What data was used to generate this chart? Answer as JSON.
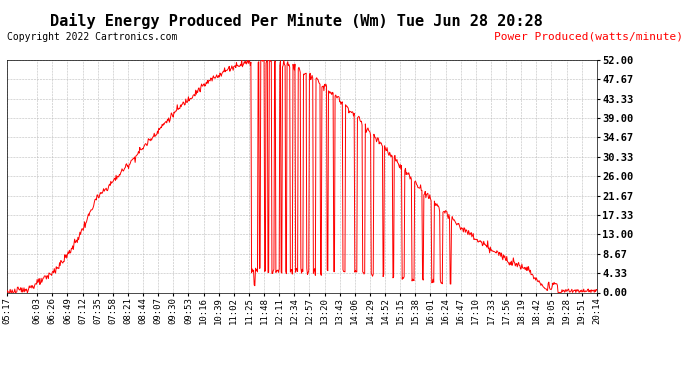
{
  "title": "Daily Energy Produced Per Minute (Wm) Tue Jun 28 20:28",
  "copyright": "Copyright 2022 Cartronics.com",
  "legend_label": "Power Produced(watts/minute)",
  "line_color": "#FF0000",
  "background_color": "#FFFFFF",
  "grid_color": "#BBBBBB",
  "ylim": [
    0,
    52.0
  ],
  "yticks": [
    0.0,
    4.33,
    8.67,
    13.0,
    17.33,
    21.67,
    26.0,
    30.33,
    34.67,
    39.0,
    43.33,
    47.67,
    52.0
  ],
  "xtick_labels": [
    "05:17",
    "06:03",
    "06:26",
    "06:49",
    "07:12",
    "07:35",
    "07:58",
    "08:21",
    "08:44",
    "09:07",
    "09:30",
    "09:53",
    "10:16",
    "10:39",
    "11:02",
    "11:25",
    "11:48",
    "12:11",
    "12:34",
    "12:57",
    "13:20",
    "13:43",
    "14:06",
    "14:29",
    "14:52",
    "15:15",
    "15:38",
    "16:01",
    "16:24",
    "16:47",
    "17:10",
    "17:33",
    "17:56",
    "18:19",
    "18:42",
    "19:05",
    "19:28",
    "19:51",
    "20:14"
  ],
  "title_fontsize": 11,
  "copyright_fontsize": 7,
  "legend_fontsize": 8,
  "tick_fontsize": 6.5,
  "ytick_fontsize": 7.5
}
